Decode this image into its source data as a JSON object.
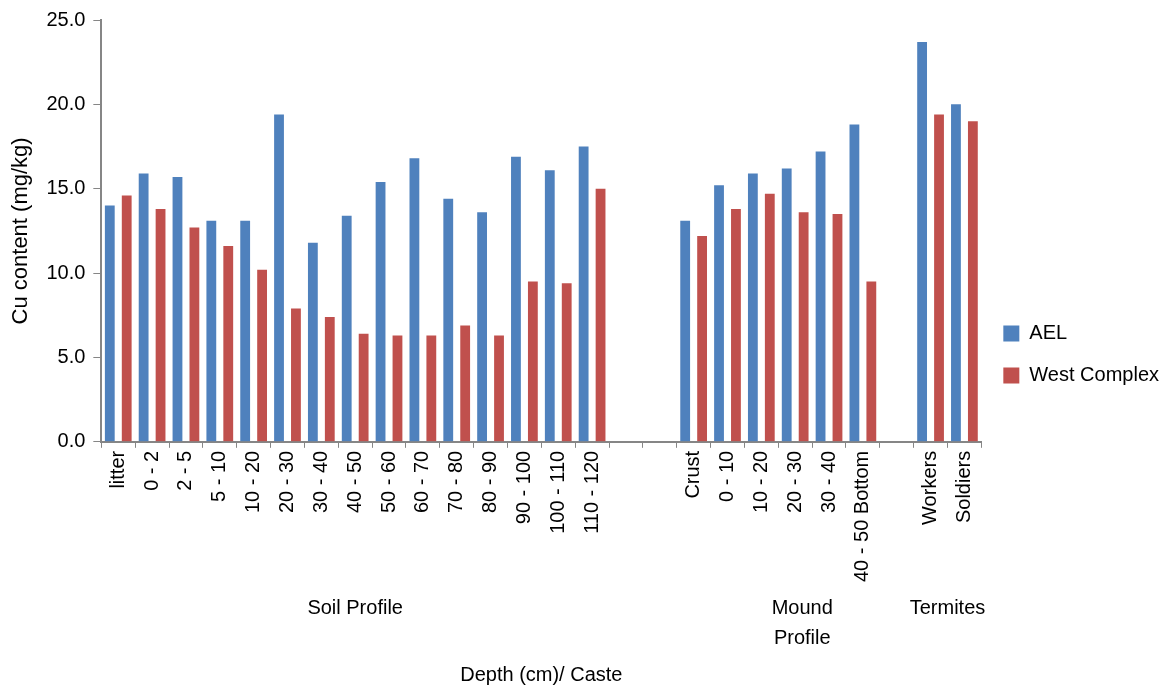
{
  "chart_data": {
    "type": "bar",
    "xlabel": "Depth (cm)/ Caste",
    "ylabel": "Cu content (mg/kg)",
    "categories": [
      "litter",
      "0 - 2",
      "2 - 5",
      "5 - 10",
      "10 - 20",
      "20 - 30",
      "30 - 40",
      "40 - 50",
      "50 - 60",
      "60 - 70",
      "70 - 80",
      "80 - 90",
      "90 - 100",
      "100 - 110",
      "110 - 120",
      null,
      null,
      "Crust",
      "0 - 10",
      "10 - 20",
      "20 - 30",
      "30 - 40",
      "40 - 50 Bottom",
      null,
      "Workers",
      "Soldiers"
    ],
    "series": [
      {
        "name": "AEL",
        "color": "#4f81bd",
        "values": [
          14.0,
          15.9,
          15.7,
          13.1,
          13.1,
          19.4,
          11.8,
          13.4,
          15.4,
          16.8,
          14.4,
          13.6,
          16.9,
          16.1,
          17.5,
          null,
          null,
          13.1,
          15.2,
          15.9,
          16.2,
          17.2,
          18.8,
          null,
          23.7,
          20.0
        ]
      },
      {
        "name": "West Complex",
        "color": "#c0504d",
        "values": [
          14.6,
          13.8,
          12.7,
          11.6,
          10.2,
          7.9,
          7.4,
          6.4,
          6.3,
          6.3,
          6.9,
          6.3,
          9.5,
          9.4,
          15.0,
          null,
          null,
          12.2,
          13.8,
          14.7,
          13.6,
          13.5,
          9.5,
          null,
          19.4,
          19.0
        ]
      }
    ],
    "ylim": [
      0,
      25
    ],
    "yticks": [
      {
        "value": 0,
        "label": "0.0"
      },
      {
        "value": 5,
        "label": "5.0"
      },
      {
        "value": 10,
        "label": "10.0"
      },
      {
        "value": 15,
        "label": "15.0"
      },
      {
        "value": 20,
        "label": "20.0"
      },
      {
        "value": 25,
        "label": "25.0"
      }
    ],
    "grid": false,
    "legend": "right",
    "annotations": [
      "Soil Profile",
      "Mound\nProfile",
      "Termites"
    ]
  }
}
